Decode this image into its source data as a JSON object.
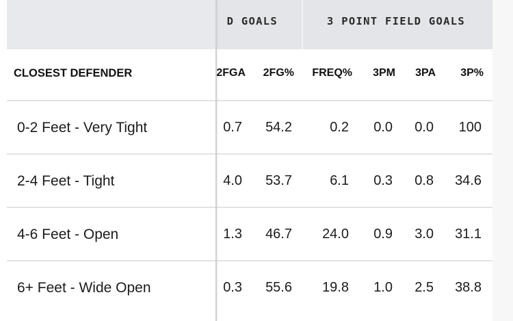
{
  "group_headers": {
    "two_point_partial": "D GOALS",
    "three_point": "3 POINT FIELD GOALS"
  },
  "columns": {
    "defender": "CLOSEST DEFENDER",
    "fga2_partial": "2FGA",
    "fg2_pct": "2FG%",
    "freq_pct": "FREQ%",
    "pm3": "3PM",
    "pa3": "3PA",
    "pct3": "3P%"
  },
  "rows": [
    {
      "defender": "0-2 Feet - Very Tight",
      "fga2": "0.7",
      "fg2_pct": "54.2",
      "freq": "0.2",
      "pm3": "0.0",
      "pa3": "0.0",
      "pct3": "100"
    },
    {
      "defender": "2-4 Feet - Tight",
      "fga2": "4.0",
      "fg2_pct": "53.7",
      "freq": "6.1",
      "pm3": "0.3",
      "pa3": "0.8",
      "pct3": "34.6"
    },
    {
      "defender": "4-6 Feet - Open",
      "fga2": "1.3",
      "fg2_pct": "46.7",
      "freq": "24.0",
      "pm3": "0.9",
      "pa3": "3.0",
      "pct3": "31.1"
    },
    {
      "defender": "6+ Feet - Wide Open",
      "fga2": "0.3",
      "fg2_pct": "55.6",
      "freq": "19.8",
      "pm3": "1.0",
      "pa3": "2.5",
      "pct3": "38.8"
    }
  ],
  "colors": {
    "header_band": "#e4e5e8",
    "divider": "#cfcfcf",
    "row_line": "#e3e3e3",
    "text": "#1b1b1b"
  }
}
